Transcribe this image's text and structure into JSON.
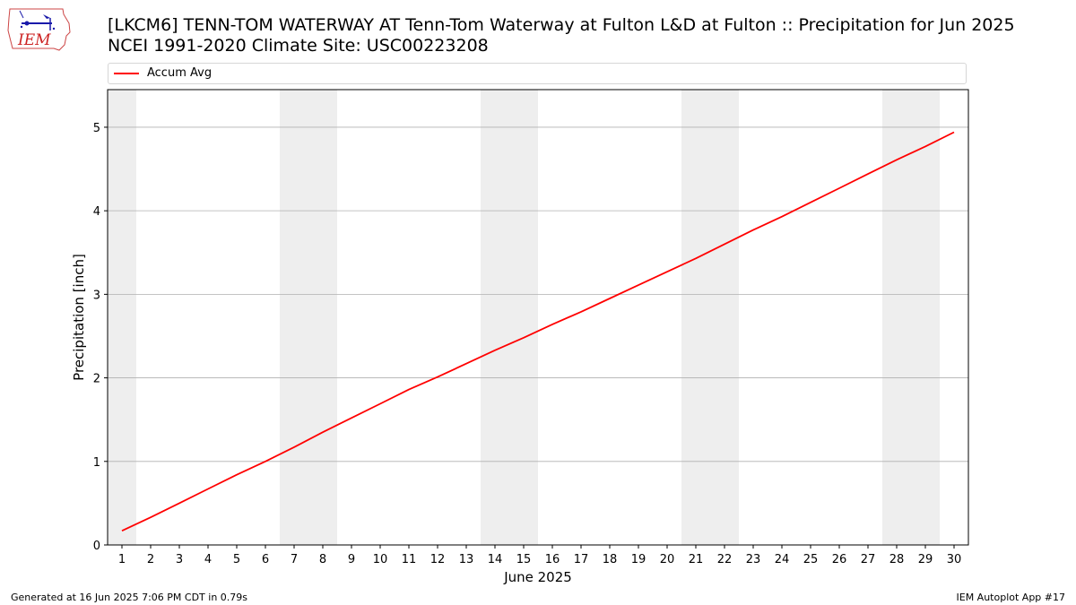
{
  "header": {
    "title_line1": "[LKCM6] TENN-TOM WATERWAY  AT Tenn-Tom Waterway at Fulton L&D at Fulton :: Precipitation for Jun 2025",
    "title_line2": "NCEI 1991-2020 Climate Site: USC00223208",
    "logo_text": "IEM"
  },
  "footer": {
    "left": "Generated at 16 Jun 2025 7:06 PM CDT in 0.79s",
    "right": "IEM Autoplot App #17"
  },
  "colors": {
    "series": "#ff0000",
    "weekend_band": "#eeeeee",
    "grid": "#b0b0b0",
    "logo_text": "#cc2222",
    "logo_icon": "#1a1aaa"
  },
  "chart_data": {
    "type": "line",
    "xlabel": "June 2025",
    "ylabel": "Precipitation [inch]",
    "xlim": [
      0.5,
      30.5
    ],
    "ylim": [
      0,
      5.45
    ],
    "yticks": [
      0,
      1,
      2,
      3,
      4,
      5
    ],
    "xticks": [
      1,
      2,
      3,
      4,
      5,
      6,
      7,
      8,
      9,
      10,
      11,
      12,
      13,
      14,
      15,
      16,
      17,
      18,
      19,
      20,
      21,
      22,
      23,
      24,
      25,
      26,
      27,
      28,
      29,
      30
    ],
    "grid": "y",
    "legend": "top",
    "weekend_days": [
      1,
      7,
      8,
      14,
      15,
      21,
      22,
      28,
      29
    ],
    "series": [
      {
        "name": "Accum Avg",
        "x": [
          1,
          2,
          3,
          4,
          5,
          6,
          7,
          8,
          9,
          10,
          11,
          12,
          13,
          14,
          15,
          16,
          17,
          18,
          19,
          20,
          21,
          22,
          23,
          24,
          25,
          26,
          27,
          28,
          29,
          30
        ],
        "values": [
          0.17,
          0.33,
          0.5,
          0.67,
          0.84,
          1.0,
          1.17,
          1.35,
          1.52,
          1.69,
          1.86,
          2.01,
          2.17,
          2.33,
          2.48,
          2.64,
          2.79,
          2.95,
          3.11,
          3.27,
          3.43,
          3.6,
          3.77,
          3.93,
          4.1,
          4.27,
          4.44,
          4.61,
          4.77,
          4.94
        ]
      }
    ]
  }
}
